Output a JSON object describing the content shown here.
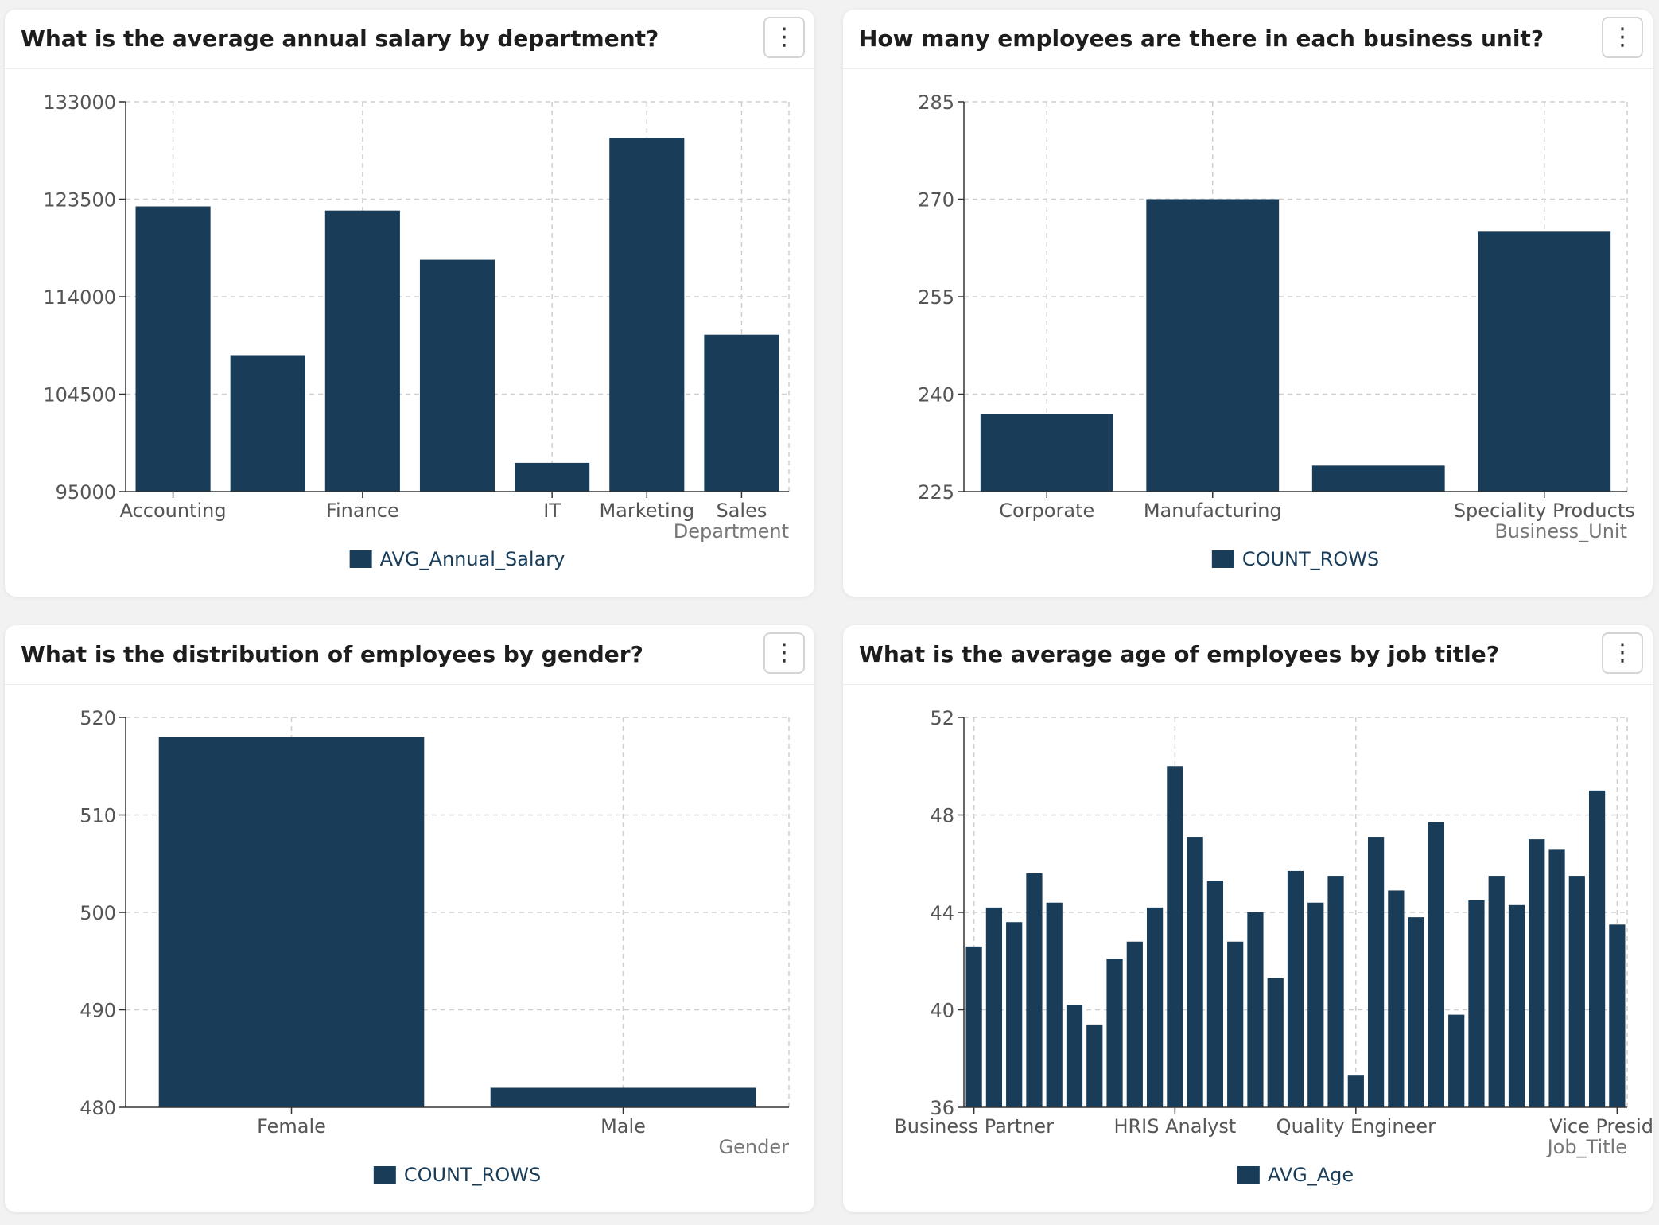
{
  "theme": {
    "bar_color": "#193d59",
    "grid_color": "#cfcfcf",
    "axis_color": "#333333"
  },
  "cards": [
    {
      "title": "What is the average annual salary by department?",
      "menu_icon": "vertical-ellipsis-icon",
      "menu_glyph": "⋮",
      "chart_data": {
        "type": "bar",
        "categories": [
          "Accounting",
          "",
          "Finance",
          "",
          "IT",
          "Marketing",
          "Sales"
        ],
        "values": [
          122800,
          108300,
          122400,
          117600,
          97800,
          129500,
          110300
        ],
        "ylim": [
          95000,
          133000
        ],
        "yticks": [
          95000,
          104500,
          114000,
          123500,
          133000
        ],
        "tick_labels": [
          "95000",
          "104500",
          "114000",
          "123500",
          "133000"
        ],
        "xlabel": "Department",
        "legend": "AVG_Annual_Salary",
        "grid": true,
        "legend_position": "bottom"
      }
    },
    {
      "title": "How many employees are there in each business unit?",
      "menu_icon": "vertical-ellipsis-icon",
      "menu_glyph": "⋮",
      "chart_data": {
        "type": "bar",
        "categories": [
          "Corporate",
          "Manufacturing",
          "",
          "Speciality Products"
        ],
        "values": [
          237,
          270,
          229,
          265
        ],
        "ylim": [
          225,
          285
        ],
        "yticks": [
          225,
          240,
          255,
          270,
          285
        ],
        "tick_labels": [
          "225",
          "240",
          "255",
          "270",
          "285"
        ],
        "xlabel": "Business_Unit",
        "legend": "COUNT_ROWS",
        "grid": true,
        "legend_position": "bottom"
      }
    },
    {
      "title": "What is the distribution of employees by gender?",
      "menu_icon": "vertical-ellipsis-icon",
      "menu_glyph": "⋮",
      "chart_data": {
        "type": "bar",
        "categories": [
          "Female",
          "Male"
        ],
        "values": [
          518,
          482
        ],
        "ylim": [
          480,
          520
        ],
        "yticks": [
          480,
          490,
          500,
          510,
          520
        ],
        "tick_labels": [
          "480",
          "490",
          "500",
          "510",
          "520"
        ],
        "xlabel": "Gender",
        "legend": "COUNT_ROWS",
        "grid": true,
        "legend_position": "bottom"
      }
    },
    {
      "title": "What is the average age of employees by job title?",
      "menu_icon": "vertical-ellipsis-icon",
      "menu_glyph": "⋮",
      "chart_data": {
        "type": "bar",
        "categories": [
          "Business Partner",
          "",
          "",
          "",
          "",
          "",
          "",
          "",
          "",
          "",
          "HRIS Analyst",
          "",
          "",
          "",
          "",
          "",
          "",
          "",
          "",
          "Quality Engineer",
          "",
          "",
          "",
          "",
          "",
          "",
          "",
          "",
          "",
          "",
          "",
          "",
          "Vice President"
        ],
        "values": [
          42.6,
          44.2,
          43.6,
          45.6,
          44.4,
          40.2,
          39.4,
          42.1,
          42.8,
          44.2,
          50.0,
          47.1,
          45.3,
          42.8,
          44.0,
          41.3,
          45.7,
          44.4,
          45.5,
          37.3,
          47.1,
          44.9,
          43.8,
          47.7,
          39.8,
          44.5,
          45.5,
          44.3,
          47.0,
          46.6,
          45.5,
          49.0,
          43.5
        ],
        "ylim": [
          36,
          52
        ],
        "yticks": [
          36,
          40,
          44,
          48,
          52
        ],
        "tick_labels": [
          "36",
          "40",
          "44",
          "48",
          "52"
        ],
        "xlabel": "Job_Title",
        "legend": "AVG_Age",
        "grid": true,
        "legend_position": "bottom"
      }
    }
  ]
}
